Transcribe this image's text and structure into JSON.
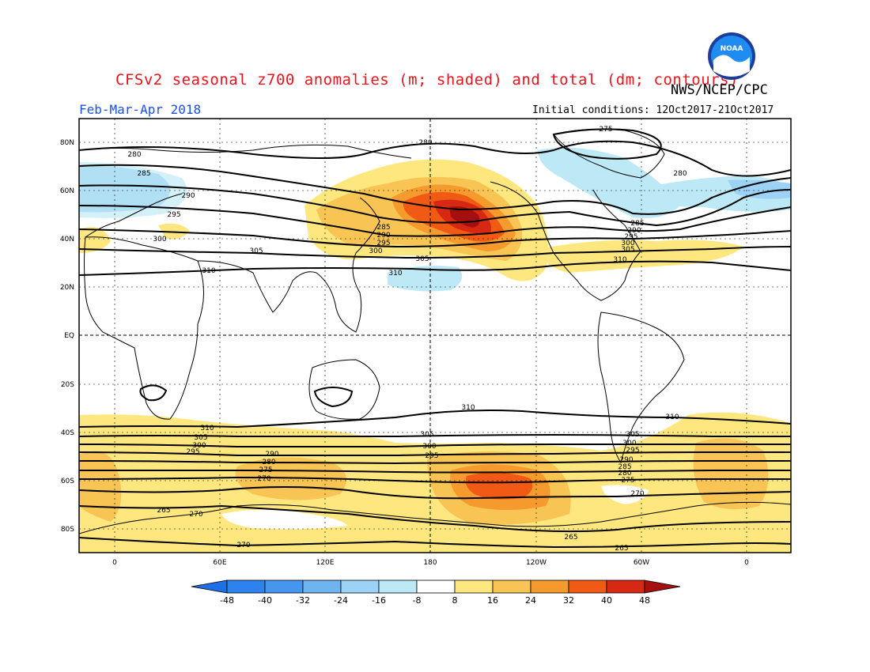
{
  "header": {
    "title": "CFSv2 seasonal z700 anomalies (m; shaded) and total (dm; contours)",
    "agency": "NWS/NCEP/CPC",
    "period": "Feb-Mar-Apr 2018",
    "initial_conditions": "Initial conditions: 12Oct2017-21Oct2017",
    "logo_text": "NOAA"
  },
  "map": {
    "lat_labels": [
      "80N",
      "60N",
      "40N",
      "20N",
      "EQ",
      "20S",
      "40S",
      "60S",
      "80S"
    ],
    "lon_labels": [
      "0",
      "60E",
      "120E",
      "180",
      "120W",
      "60W",
      "0"
    ],
    "contour_labels": {
      "north": [
        "275",
        "280",
        "280",
        "280",
        "285",
        "290",
        "295",
        "300",
        "305",
        "310",
        "285",
        "290",
        "295",
        "300",
        "305",
        "310",
        "285",
        "290",
        "295",
        "300",
        "305",
        "310"
      ],
      "south": [
        "310",
        "305",
        "300",
        "295",
        "290",
        "280",
        "275",
        "270",
        "265",
        "270",
        "270",
        "310",
        "305",
        "300",
        "295",
        "310",
        "305",
        "300",
        "295",
        "290",
        "285",
        "280",
        "275",
        "270",
        "265",
        "265"
      ]
    }
  },
  "colorbar": {
    "ticks": [
      "-48",
      "-40",
      "-32",
      "-24",
      "-16",
      "-8",
      "8",
      "16",
      "24",
      "32",
      "40",
      "48"
    ],
    "colors": [
      "#1e6ee6",
      "#2d82f0",
      "#4696f0",
      "#6eb4f0",
      "#9bd2f5",
      "#bde8f5",
      "#ffffff",
      "#fde77e",
      "#f8c454",
      "#f59a2d",
      "#f05a14",
      "#d72814",
      "#a50f0f"
    ]
  },
  "colors": {
    "title": "#e8141e",
    "period": "#1a50e6"
  }
}
